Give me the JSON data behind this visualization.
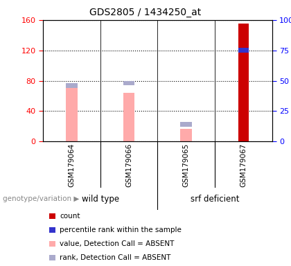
{
  "title": "GDS2805 / 1434250_at",
  "samples": [
    "GSM179064",
    "GSM179066",
    "GSM179065",
    "GSM179067"
  ],
  "groups": [
    {
      "label": "wild type",
      "indices": [
        0,
        1
      ]
    },
    {
      "label": "srf deficient",
      "indices": [
        2,
        3
      ]
    }
  ],
  "count_values": [
    0,
    0,
    0,
    155
  ],
  "percentile_rank": [
    null,
    null,
    null,
    75
  ],
  "absent_value": [
    76,
    64,
    17,
    0
  ],
  "absent_rank": [
    46,
    48,
    14,
    0
  ],
  "left_ylim": [
    0,
    160
  ],
  "left_yticks": [
    0,
    40,
    80,
    120,
    160
  ],
  "right_yticks": [
    0,
    25,
    50,
    75,
    100
  ],
  "count_color": "#cc0000",
  "percentile_color": "#3333cc",
  "absent_value_color": "#ffaaaa",
  "absent_rank_color": "#aaaacc",
  "bg_color": "#ffffff",
  "sample_bg": "#cccccc",
  "group_bg": "#66ee66",
  "genotype_label": "genotype/variation",
  "legend_items": [
    {
      "label": "count",
      "color": "#cc0000"
    },
    {
      "label": "percentile rank within the sample",
      "color": "#3333cc"
    },
    {
      "label": "value, Detection Call = ABSENT",
      "color": "#ffaaaa"
    },
    {
      "label": "rank, Detection Call = ABSENT",
      "color": "#aaaacc"
    }
  ]
}
